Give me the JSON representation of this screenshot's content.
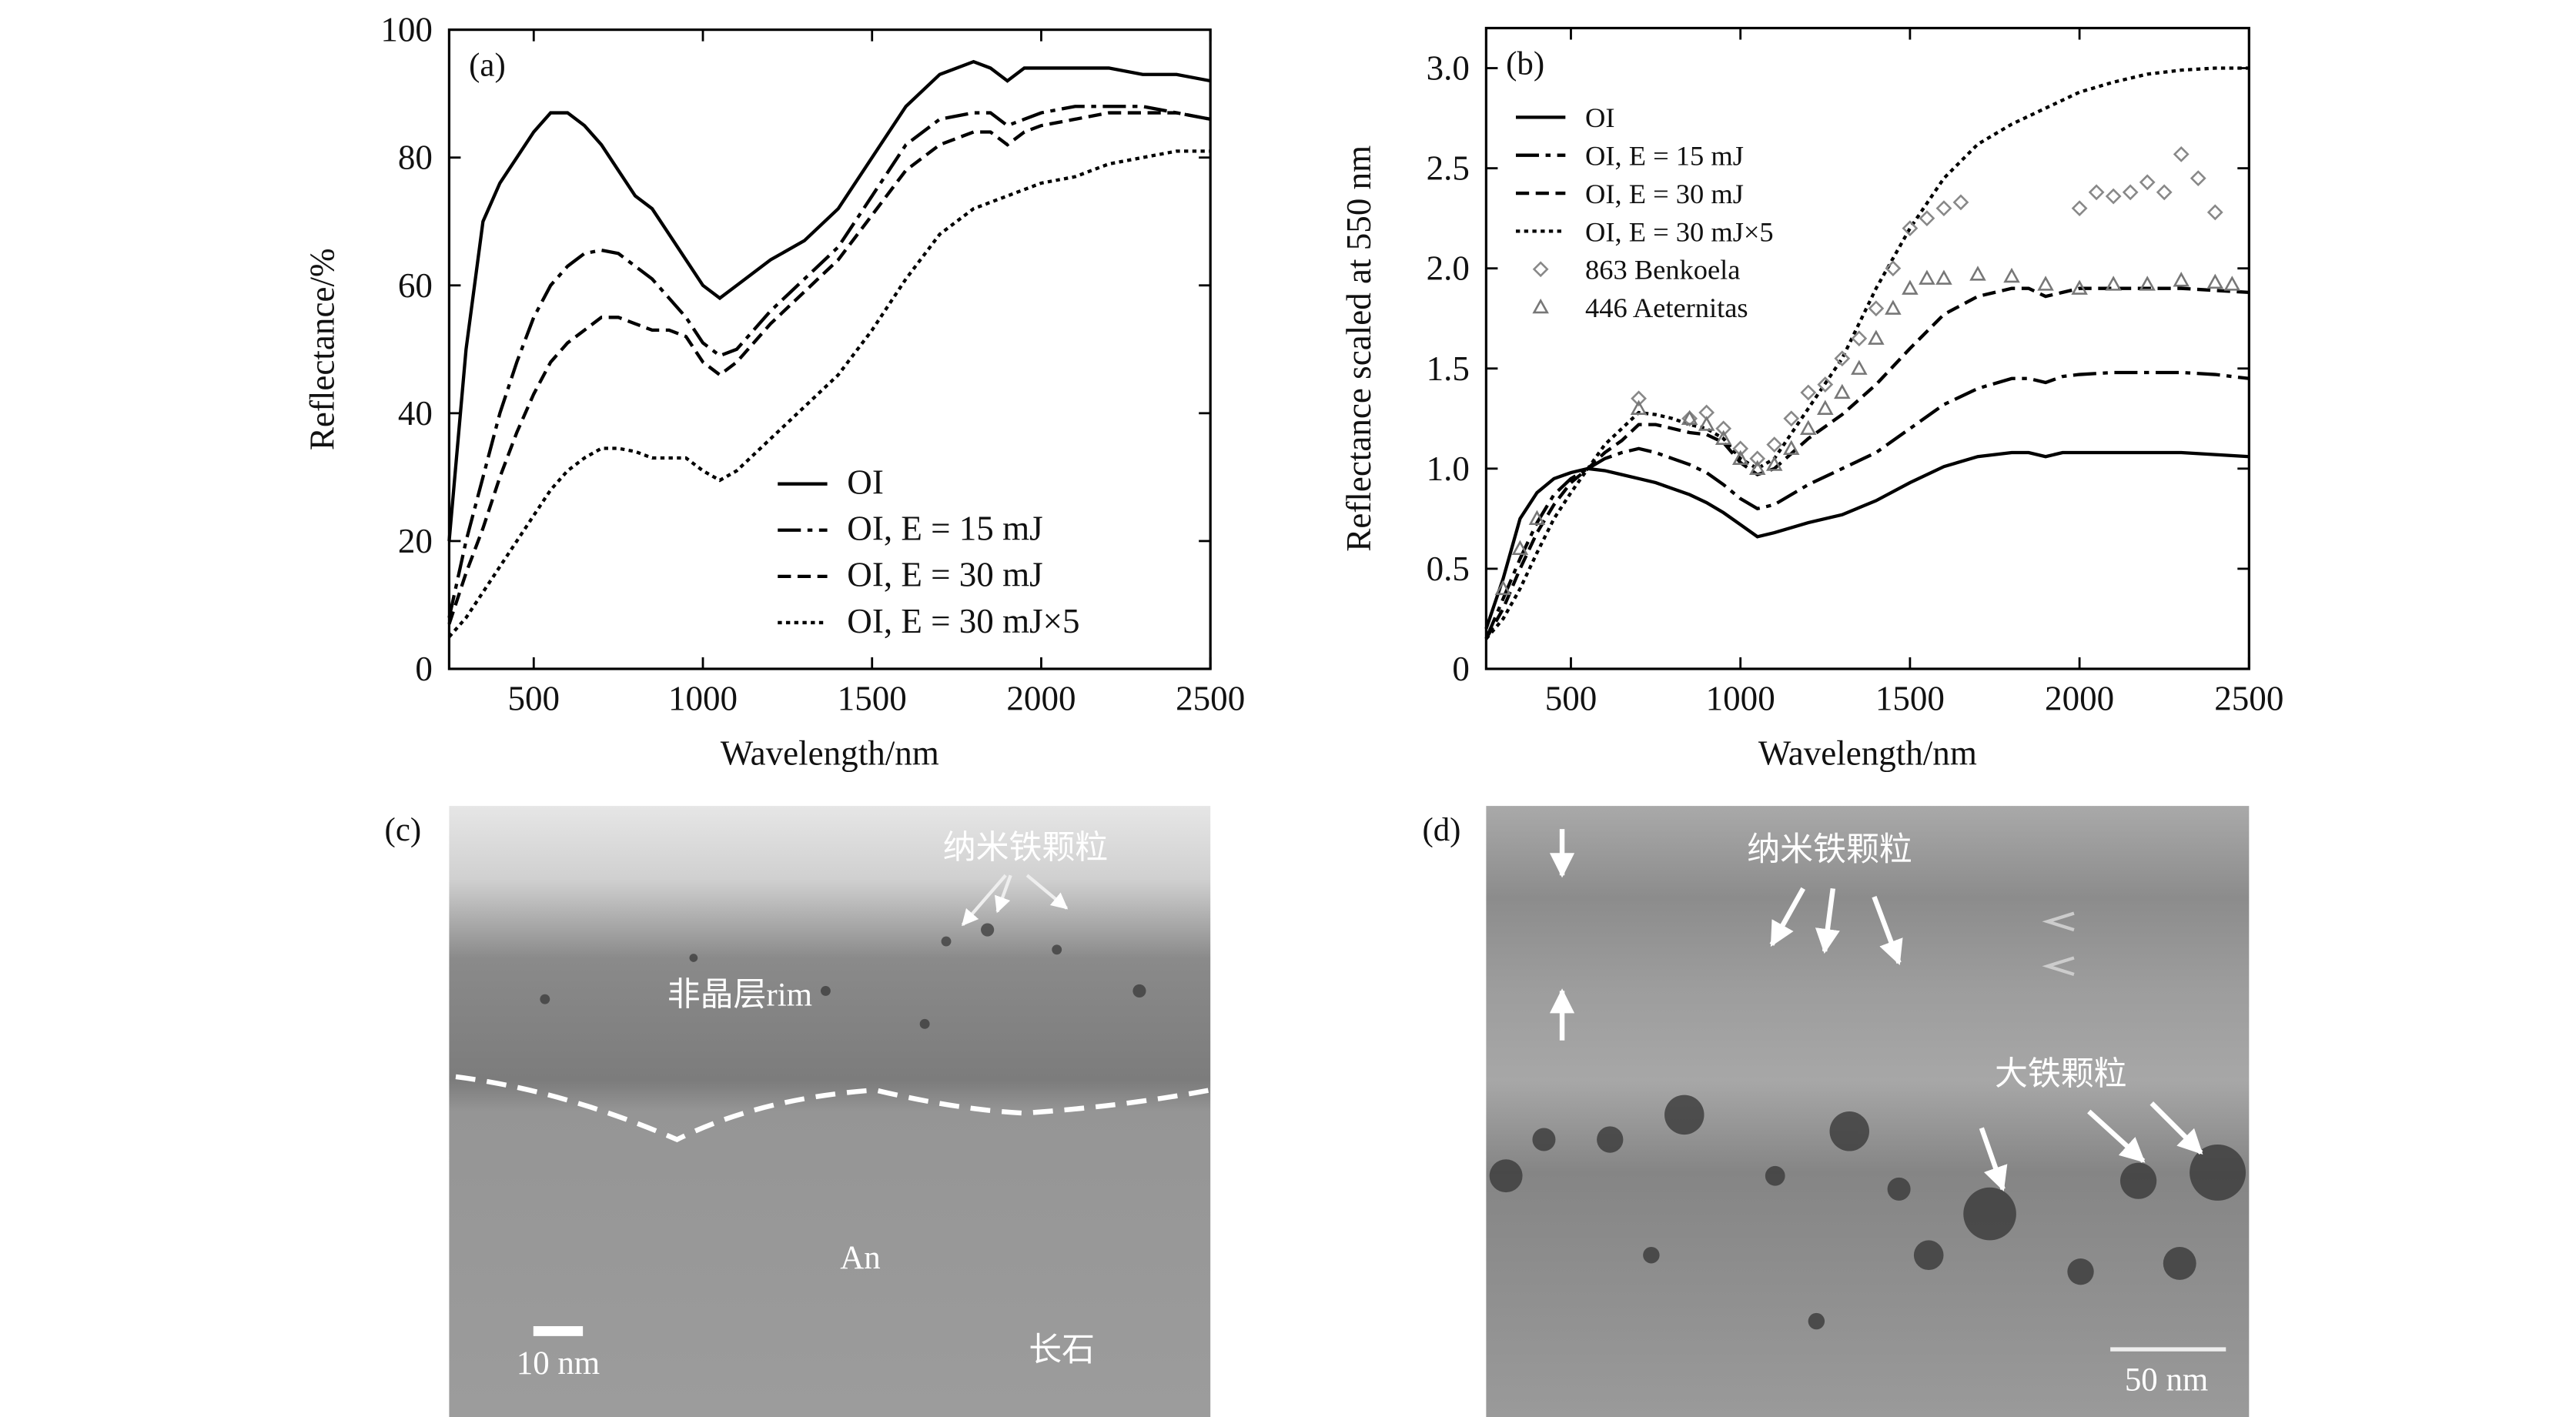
{
  "chart_data": [
    {
      "type": "line",
      "label": "(a)",
      "xlabel": "Wavelength/nm",
      "ylabel": "Reflectance/%",
      "xlim": [
        250,
        2500
      ],
      "ylim": [
        0,
        100
      ],
      "xticks": [
        500,
        1000,
        1500,
        2000,
        2500
      ],
      "yticks": [
        0,
        20,
        40,
        60,
        80,
        100
      ],
      "legend": "lower right",
      "x": [
        250,
        300,
        350,
        400,
        450,
        500,
        550,
        600,
        650,
        700,
        750,
        800,
        850,
        900,
        950,
        1000,
        1050,
        1100,
        1200,
        1300,
        1400,
        1500,
        1600,
        1700,
        1800,
        1850,
        1900,
        1950,
        2000,
        2100,
        2200,
        2300,
        2400,
        2500
      ],
      "series": [
        {
          "name": "OI",
          "color": "#000",
          "style": "solid",
          "values": [
            20,
            50,
            70,
            76,
            80,
            84,
            87,
            87,
            85,
            82,
            78,
            74,
            72,
            68,
            64,
            60,
            58,
            60,
            64,
            67,
            72,
            80,
            88,
            93,
            95,
            94,
            92,
            94,
            94,
            94,
            94,
            93,
            93,
            92
          ]
        },
        {
          "name": "OI, E = 15 mJ",
          "color": "#000",
          "style": "dashdot",
          "values": [
            8,
            20,
            30,
            40,
            48,
            55,
            60,
            63,
            65,
            65.5,
            65,
            63,
            61,
            58,
            55,
            51,
            49,
            50,
            56,
            61,
            66,
            74,
            82,
            86,
            87,
            87,
            85,
            86,
            87,
            88,
            88,
            88,
            87,
            86
          ]
        },
        {
          "name": "OI, E = 30 mJ",
          "color": "#000",
          "style": "dashed",
          "values": [
            7,
            15,
            22,
            30,
            37,
            43,
            48,
            51,
            53,
            55,
            55,
            54,
            53,
            53,
            52,
            48,
            46,
            48,
            54,
            59,
            64,
            71,
            78,
            82,
            84,
            84,
            82,
            84,
            85,
            86,
            87,
            87,
            87,
            86
          ]
        },
        {
          "name": "OI, E = 30 mJ×5",
          "color": "#000",
          "style": "dotted",
          "values": [
            5,
            8,
            12,
            16,
            20,
            24,
            28,
            31,
            33,
            34.5,
            34.5,
            34,
            33,
            33,
            33,
            31,
            29.5,
            31,
            36,
            41,
            46,
            53,
            61,
            68,
            72,
            73,
            74,
            75,
            76,
            77,
            79,
            80,
            81,
            81
          ]
        }
      ]
    },
    {
      "type": "line",
      "label": "(b)",
      "xlabel": "Wavelength/nm",
      "ylabel": "Reflectance scaled at 550 nm",
      "xlim": [
        250,
        2500
      ],
      "ylim": [
        0,
        3.2
      ],
      "xticks": [
        500,
        1000,
        1500,
        2000,
        2500
      ],
      "yticks": [
        0,
        0.5,
        {
          "value": 1,
          "label": "1.0"
        },
        1.5,
        {
          "value": 2,
          "label": "2.0"
        },
        2.5,
        {
          "value": 3,
          "label": "3.0"
        }
      ],
      "legend": "upper left",
      "x": [
        250,
        300,
        350,
        400,
        450,
        500,
        550,
        600,
        650,
        700,
        750,
        800,
        850,
        900,
        950,
        1000,
        1050,
        1100,
        1200,
        1300,
        1400,
        1500,
        1600,
        1700,
        1800,
        1850,
        1900,
        1950,
        2000,
        2100,
        2200,
        2300,
        2400,
        2500
      ],
      "series": [
        {
          "name": "OI",
          "color": "#000",
          "style": "solid",
          "values": [
            0.2,
            0.45,
            0.75,
            0.88,
            0.95,
            0.98,
            1.0,
            0.99,
            0.97,
            0.95,
            0.93,
            0.9,
            0.87,
            0.83,
            0.78,
            0.72,
            0.66,
            0.68,
            0.73,
            0.77,
            0.84,
            0.93,
            1.01,
            1.06,
            1.08,
            1.08,
            1.06,
            1.08,
            1.08,
            1.08,
            1.08,
            1.08,
            1.07,
            1.06
          ]
        },
        {
          "name": "OI, E = 15 mJ",
          "color": "#000",
          "style": "dashdot",
          "values": [
            0.15,
            0.35,
            0.55,
            0.73,
            0.87,
            0.95,
            1.0,
            1.05,
            1.08,
            1.1,
            1.08,
            1.05,
            1.02,
            0.98,
            0.92,
            0.85,
            0.8,
            0.82,
            0.92,
            1.0,
            1.08,
            1.2,
            1.32,
            1.4,
            1.45,
            1.45,
            1.43,
            1.46,
            1.47,
            1.48,
            1.48,
            1.48,
            1.47,
            1.45
          ]
        },
        {
          "name": "OI, E = 30 mJ",
          "color": "#000",
          "style": "dashed",
          "values": [
            0.15,
            0.3,
            0.5,
            0.68,
            0.82,
            0.93,
            1.0,
            1.08,
            1.14,
            1.22,
            1.22,
            1.2,
            1.18,
            1.17,
            1.13,
            1.03,
            0.97,
            1.0,
            1.15,
            1.27,
            1.42,
            1.6,
            1.77,
            1.86,
            1.9,
            1.9,
            1.86,
            1.88,
            1.9,
            1.9,
            1.9,
            1.9,
            1.89,
            1.88
          ]
        },
        {
          "name": "OI, E = 30 mJ×5",
          "color": "#000",
          "style": "dotted",
          "values": [
            0.15,
            0.25,
            0.4,
            0.58,
            0.75,
            0.88,
            1.0,
            1.12,
            1.2,
            1.28,
            1.27,
            1.25,
            1.22,
            1.2,
            1.15,
            1.05,
            1.0,
            1.05,
            1.3,
            1.55,
            1.9,
            2.2,
            2.45,
            2.62,
            2.72,
            2.76,
            2.8,
            2.84,
            2.88,
            2.93,
            2.97,
            2.99,
            3.0,
            3.0
          ]
        },
        {
          "name": "863 Benkoela",
          "color": "#888",
          "marker": "diamond",
          "x": [
            700,
            850,
            900,
            950,
            1000,
            1050,
            1100,
            1150,
            1200,
            1250,
            1300,
            1350,
            1400,
            1450,
            1500,
            1550,
            1600,
            1650,
            2000,
            2050,
            2100,
            2150,
            2200,
            2250,
            2300,
            2350,
            2400
          ],
          "values": [
            1.35,
            1.25,
            1.28,
            1.2,
            1.1,
            1.05,
            1.12,
            1.25,
            1.38,
            1.42,
            1.55,
            1.65,
            1.8,
            2.0,
            2.2,
            2.25,
            2.3,
            2.33,
            2.3,
            2.38,
            2.36,
            2.38,
            2.43,
            2.38,
            2.57,
            2.45,
            2.28
          ]
        },
        {
          "name": "446 Aeternitas",
          "color": "#777",
          "marker": "triangle",
          "x": [
            300,
            350,
            400,
            700,
            850,
            900,
            950,
            1000,
            1050,
            1100,
            1150,
            1200,
            1250,
            1300,
            1350,
            1400,
            1450,
            1500,
            1550,
            1600,
            1700,
            1800,
            1900,
            2000,
            2100,
            2200,
            2300,
            2400,
            2450
          ],
          "values": [
            0.4,
            0.6,
            0.75,
            1.3,
            1.25,
            1.22,
            1.15,
            1.05,
            1.0,
            1.02,
            1.1,
            1.2,
            1.3,
            1.38,
            1.5,
            1.65,
            1.8,
            1.9,
            1.95,
            1.95,
            1.97,
            1.96,
            1.92,
            1.9,
            1.92,
            1.92,
            1.94,
            1.93,
            1.92
          ]
        }
      ]
    }
  ],
  "images": [
    {
      "label": "(c)",
      "annotations": [
        "纳米铁颗粒",
        "非晶层rim",
        "An",
        "10 nm",
        "长石"
      ]
    },
    {
      "label": "(d)",
      "annotations": [
        "纳米铁颗粒",
        "大铁颗粒",
        "50 nm"
      ]
    }
  ]
}
